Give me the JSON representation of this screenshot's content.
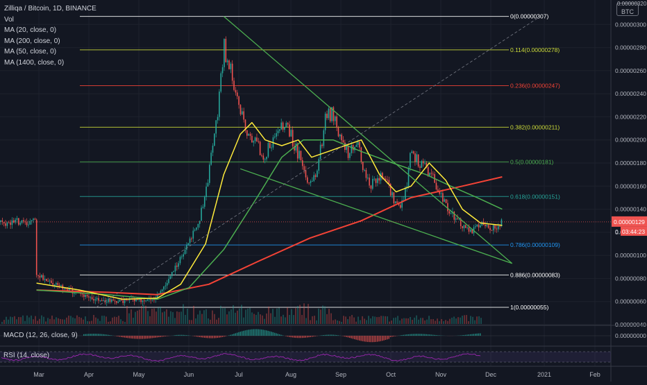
{
  "legend": {
    "title": "Zilliqa / Bitcoin, 1D, BINANCE",
    "vol": "Vol",
    "ma20": "MA (20, close, 0)",
    "ma200": "MA (200, close, 0)",
    "ma50": "MA (50, close, 0)",
    "ma1400": "MA (1400, close, 0)"
  },
  "macd_label": "MACD (12, 26, close, 9)",
  "rsi_label": "RSI (14, close)",
  "currency_badge_top": "0.00000320",
  "currency_badge_bottom": "BTC",
  "colors": {
    "background": "#131722",
    "up_candle": "#26a69a",
    "down_candle": "#ef5350",
    "ma20": "#ffeb3b",
    "ma50": "#4caf50",
    "ma200": "#f44336",
    "trendline": "#4caf50",
    "rsi": "#9c27b0",
    "price_tag": "#ef5350"
  },
  "chart_data": {
    "type": "candlestick",
    "symbol": "Zilliqa / Bitcoin",
    "interval": "1D",
    "exchange": "BINANCE",
    "y_axis": {
      "ticks": [
        "0.00000300",
        "0.00000280",
        "0.00000260",
        "0.00000240",
        "0.00000220",
        "0.00000200",
        "0.00000180",
        "0.00000160",
        "0.00000140",
        "0.00000120",
        "0.00000100",
        "0.00000080",
        "0.00000060",
        "0.00000040"
      ],
      "range": [
        4e-07,
        3.2e-06
      ]
    },
    "x_axis": {
      "ticks": [
        "Mar",
        "Apr",
        "May",
        "Jun",
        "Jul",
        "Aug",
        "Sep",
        "Oct",
        "Nov",
        "Dec",
        "2021",
        "Feb"
      ]
    },
    "current_price": "0.00000129",
    "countdown": "03:44:23",
    "countdown_prefix": "0.",
    "macd_axis_label": "0.00000000",
    "fibonacci": [
      {
        "label": "0(0.00000307)",
        "price": 3.07e-06,
        "color": "#ffffff"
      },
      {
        "label": "0.114(0.00000278)",
        "price": 2.78e-06,
        "color": "#cddc39"
      },
      {
        "label": "0.236(0.00000247)",
        "price": 2.47e-06,
        "color": "#f44336"
      },
      {
        "label": "0.382(0.00000211)",
        "price": 2.11e-06,
        "color": "#cddc39"
      },
      {
        "label": "0.5(0.00000181)",
        "price": 1.81e-06,
        "color": "#4caf50"
      },
      {
        "label": "0.618(0.00000151)",
        "price": 1.51e-06,
        "color": "#26a69a"
      },
      {
        "label": "0.786(0.00000109)",
        "price": 1.09e-06,
        "color": "#2196f3"
      },
      {
        "label": "0.886(0.00000083)",
        "price": 8.3e-07,
        "color": "#ffffff"
      },
      {
        "label": "1(0.00000055)",
        "price": 5.5e-07,
        "color": "#ffffff"
      }
    ],
    "price_path": [
      [
        "2020-02-18",
        8.4e-07
      ],
      [
        "2020-02-25",
        7.8e-07
      ],
      [
        "2020-03-05",
        7.2e-07
      ],
      [
        "2020-03-15",
        6.6e-07
      ],
      [
        "2020-03-25",
        6.2e-07
      ],
      [
        "2020-04-05",
        6e-07
      ],
      [
        "2020-04-18",
        6.1e-07
      ],
      [
        "2020-04-28",
        6.2e-07
      ],
      [
        "2020-05-05",
        7.2e-07
      ],
      [
        "2020-05-12",
        9e-07
      ],
      [
        "2020-05-20",
        1.1e-06
      ],
      [
        "2020-05-26",
        1.3e-06
      ],
      [
        "2020-05-30",
        1.55e-06
      ],
      [
        "2020-06-03",
        1.9e-06
      ],
      [
        "2020-06-07",
        2.3e-06
      ],
      [
        "2020-06-10",
        2.8e-06
      ],
      [
        "2020-06-13",
        2.65e-06
      ],
      [
        "2020-06-17",
        2.45e-06
      ],
      [
        "2020-06-21",
        2.2e-06
      ],
      [
        "2020-06-26",
        2e-06
      ],
      [
        "2020-07-01",
        1.95e-06
      ],
      [
        "2020-07-05",
        1.85e-06
      ],
      [
        "2020-07-09",
        2e-06
      ],
      [
        "2020-07-14",
        2.15e-06
      ],
      [
        "2020-07-20",
        2.05e-06
      ],
      [
        "2020-07-26",
        1.85e-06
      ],
      [
        "2020-07-31",
        1.6e-06
      ],
      [
        "2020-08-05",
        1.7e-06
      ],
      [
        "2020-08-10",
        2.15e-06
      ],
      [
        "2020-08-14",
        2.25e-06
      ],
      [
        "2020-08-19",
        2.05e-06
      ],
      [
        "2020-08-24",
        1.9e-06
      ],
      [
        "2020-08-29",
        2e-06
      ],
      [
        "2020-09-02",
        1.75e-06
      ],
      [
        "2020-09-06",
        1.6e-06
      ],
      [
        "2020-09-10",
        1.65e-06
      ],
      [
        "2020-09-15",
        1.7e-06
      ],
      [
        "2020-09-20",
        1.5e-06
      ],
      [
        "2020-09-25",
        1.4e-06
      ],
      [
        "2020-09-29",
        1.65e-06
      ],
      [
        "2020-10-01",
        1.95e-06
      ],
      [
        "2020-10-05",
        1.8e-06
      ],
      [
        "2020-10-10",
        1.75e-06
      ],
      [
        "2020-10-15",
        1.65e-06
      ],
      [
        "2020-10-20",
        1.5e-06
      ],
      [
        "2020-10-26",
        1.35e-06
      ],
      [
        "2020-11-01",
        1.25e-06
      ],
      [
        "2020-11-07",
        1.2e-06
      ],
      [
        "2020-11-12",
        1.28e-06
      ],
      [
        "2020-11-17",
        1.22e-06
      ],
      [
        "2020-11-22",
        1.26e-06
      ],
      [
        "2020-11-25",
        1.29e-06
      ]
    ],
    "ma20": [
      [
        "2020-02-18",
        7.6e-07
      ],
      [
        "2020-03-15",
        7e-07
      ],
      [
        "2020-04-10",
        6.2e-07
      ],
      [
        "2020-05-01",
        6.3e-07
      ],
      [
        "2020-05-15",
        7.5e-07
      ],
      [
        "2020-05-30",
        1.1e-06
      ],
      [
        "2020-06-10",
        1.7e-06
      ],
      [
        "2020-06-20",
        2.05e-06
      ],
      [
        "2020-06-27",
        2.15e-06
      ],
      [
        "2020-07-05",
        2e-06
      ],
      [
        "2020-07-15",
        1.95e-06
      ],
      [
        "2020-07-25",
        2e-06
      ],
      [
        "2020-08-02",
        1.85e-06
      ],
      [
        "2020-08-12",
        1.9e-06
      ],
      [
        "2020-08-22",
        1.95e-06
      ],
      [
        "2020-09-01",
        2e-06
      ],
      [
        "2020-09-12",
        1.7e-06
      ],
      [
        "2020-09-22",
        1.55e-06
      ],
      [
        "2020-10-01",
        1.6e-06
      ],
      [
        "2020-10-12",
        1.8e-06
      ],
      [
        "2020-10-22",
        1.65e-06
      ],
      [
        "2020-11-01",
        1.4e-06
      ],
      [
        "2020-11-12",
        1.28e-06
      ],
      [
        "2020-11-25",
        1.26e-06
      ]
    ],
    "ma50": [
      [
        "2020-02-18",
        7e-07
      ],
      [
        "2020-04-01",
        6.6e-07
      ],
      [
        "2020-05-01",
        6.2e-07
      ],
      [
        "2020-05-20",
        7.2e-07
      ],
      [
        "2020-06-10",
        1.05e-06
      ],
      [
        "2020-06-30",
        1.5e-06
      ],
      [
        "2020-07-15",
        1.85e-06
      ],
      [
        "2020-07-28",
        2e-06
      ],
      [
        "2020-08-15",
        2e-06
      ],
      [
        "2020-09-01",
        1.9e-06
      ],
      [
        "2020-09-20",
        1.8e-06
      ],
      [
        "2020-10-10",
        1.7e-06
      ],
      [
        "2020-10-25",
        1.6e-06
      ],
      [
        "2020-11-10",
        1.5e-06
      ],
      [
        "2020-11-25",
        1.4e-06
      ]
    ],
    "ma200": [
      [
        "2020-02-18",
        7e-07
      ],
      [
        "2020-04-01",
        6.8e-07
      ],
      [
        "2020-05-01",
        6.6e-07
      ],
      [
        "2020-06-01",
        7.5e-07
      ],
      [
        "2020-07-01",
        9.5e-07
      ],
      [
        "2020-08-01",
        1.15e-06
      ],
      [
        "2020-09-01",
        1.3e-06
      ],
      [
        "2020-10-01",
        1.5e-06
      ],
      [
        "2020-11-01",
        1.6e-06
      ],
      [
        "2020-11-25",
        1.68e-06
      ]
    ],
    "trendlines": [
      {
        "name": "upper",
        "from": [
          "2020-06-10",
          3.07e-06
        ],
        "to": [
          "2020-12-01",
          9.3e-07
        ],
        "color": "#4caf50"
      },
      {
        "name": "lower",
        "from": [
          "2020-06-20",
          1.75e-06
        ],
        "to": [
          "2020-12-01",
          9.3e-07
        ],
        "color": "#4caf50"
      },
      {
        "name": "diagonal",
        "from": [
          "2020-03-25",
          5.5e-07
        ],
        "to": [
          "2020-12-18",
          3.07e-06
        ],
        "color": "#787b86",
        "dashed": true
      }
    ]
  }
}
